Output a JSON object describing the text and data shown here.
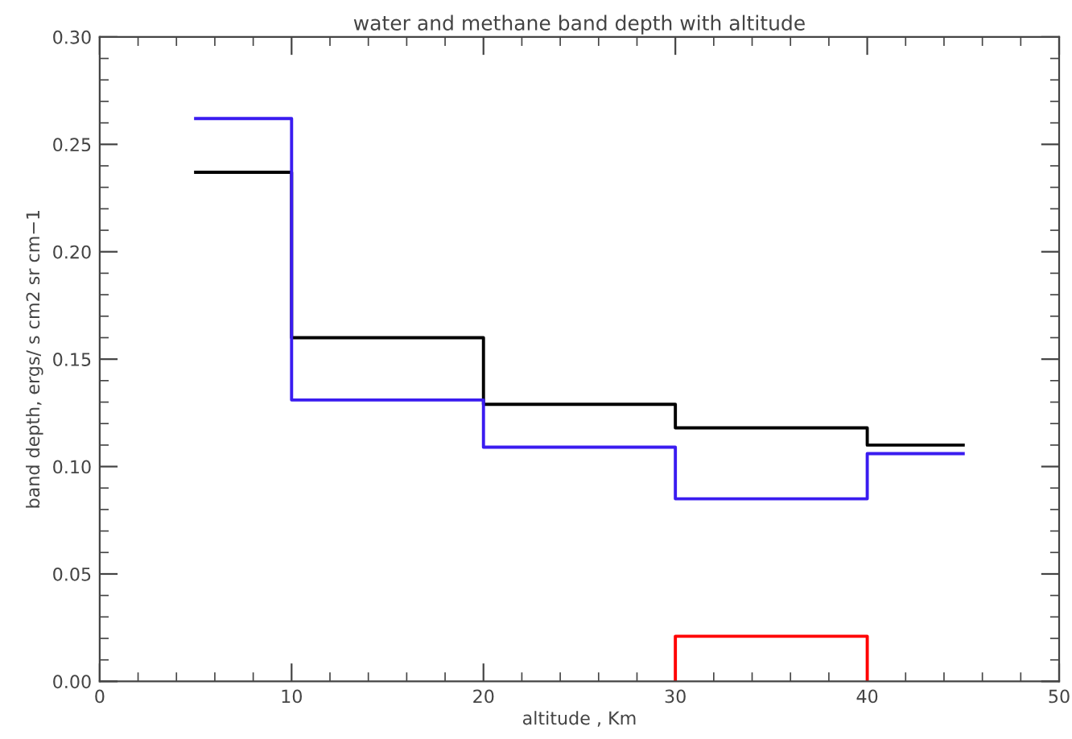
{
  "chart_data": {
    "type": "step",
    "title": "water and methane band depth with altitude",
    "xlabel": "altitude , Km",
    "ylabel": "band depth, ergs/ s cm2 sr cm−1",
    "series": [
      {
        "color": "#000000",
        "x": [
          5,
          10,
          20,
          30,
          40,
          45
        ],
        "values": [
          0.237,
          0.16,
          0.129,
          0.118,
          0.11,
          0.11
        ]
      },
      {
        "color": "#3a1cf0",
        "x": [
          5,
          10,
          20,
          30,
          40,
          45
        ],
        "values": [
          0.262,
          0.131,
          0.109,
          0.085,
          0.106,
          0.106
        ]
      },
      {
        "color": "#ff0000",
        "x": [
          30,
          30,
          40,
          40
        ],
        "values": [
          0,
          0.021,
          0.021,
          0
        ]
      }
    ],
    "xlim": [
      0,
      50
    ],
    "xticks": [
      0,
      10,
      20,
      30,
      40,
      50
    ],
    "ylim": [
      0,
      0.3
    ],
    "yticks": [
      {
        "value": 0,
        "label": "0.00"
      },
      {
        "value": 0.05,
        "label": "0.05"
      },
      {
        "value": 0.1,
        "label": "0.10"
      },
      {
        "value": 0.15,
        "label": "0.15"
      },
      {
        "value": 0.2,
        "label": "0.20"
      },
      {
        "value": 0.25,
        "label": "0.25"
      },
      {
        "value": 0.3,
        "label": "0.30"
      }
    ],
    "grid": false
  }
}
